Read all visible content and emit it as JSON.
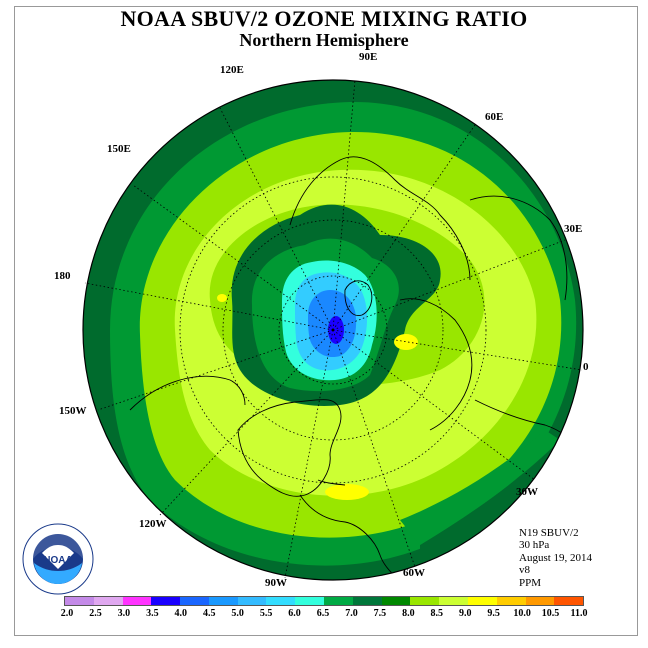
{
  "title": "NOAA SBUV/2 OZONE MIXING RATIO",
  "subtitle": "Northern Hemisphere",
  "longitude_labels": {
    "e90": "90E",
    "e120": "120E",
    "e60": "60E",
    "e150": "150E",
    "e30": "30E",
    "lon180": "180",
    "lon0": "0",
    "w150": "150W",
    "w30": "30W",
    "w120": "120W",
    "w60": "60W",
    "w90": "90W"
  },
  "info": {
    "instrument": "N19 SBUV/2",
    "level": "30 hPa",
    "date": "August 19, 2014",
    "version": "v8",
    "units": "PPM"
  },
  "logo_text": "NOAA",
  "scale": {
    "labels": [
      "2.0",
      "2.5",
      "3.0",
      "3.5",
      "4.0",
      "4.5",
      "5.0",
      "5.5",
      "6.0",
      "6.5",
      "7.0",
      "7.5",
      "8.0",
      "8.5",
      "9.0",
      "9.5",
      "10.0",
      "10.5",
      "11.0"
    ],
    "colors": [
      "#c48ae8",
      "#e0a8f0",
      "#ff33ff",
      "#1a00ff",
      "#1a66ff",
      "#1a99ff",
      "#33bbff",
      "#33ddff",
      "#33ffdd",
      "#00aa44",
      "#00773a",
      "#008800",
      "#99e600",
      "#ccff33",
      "#ffff00",
      "#ffcc00",
      "#ff9900",
      "#ff5500",
      "#ff0000",
      "#8b5a2b"
    ]
  },
  "colors": {
    "dark_green": "#006b2d",
    "green": "#009933",
    "light_green": "#99e600",
    "yellow_green": "#ccff33",
    "yellow": "#ffff00",
    "cyan": "#33ffdd",
    "light_blue": "#33ccff",
    "mid_blue": "#1a88ff",
    "deep_blue": "#1a00ff"
  }
}
